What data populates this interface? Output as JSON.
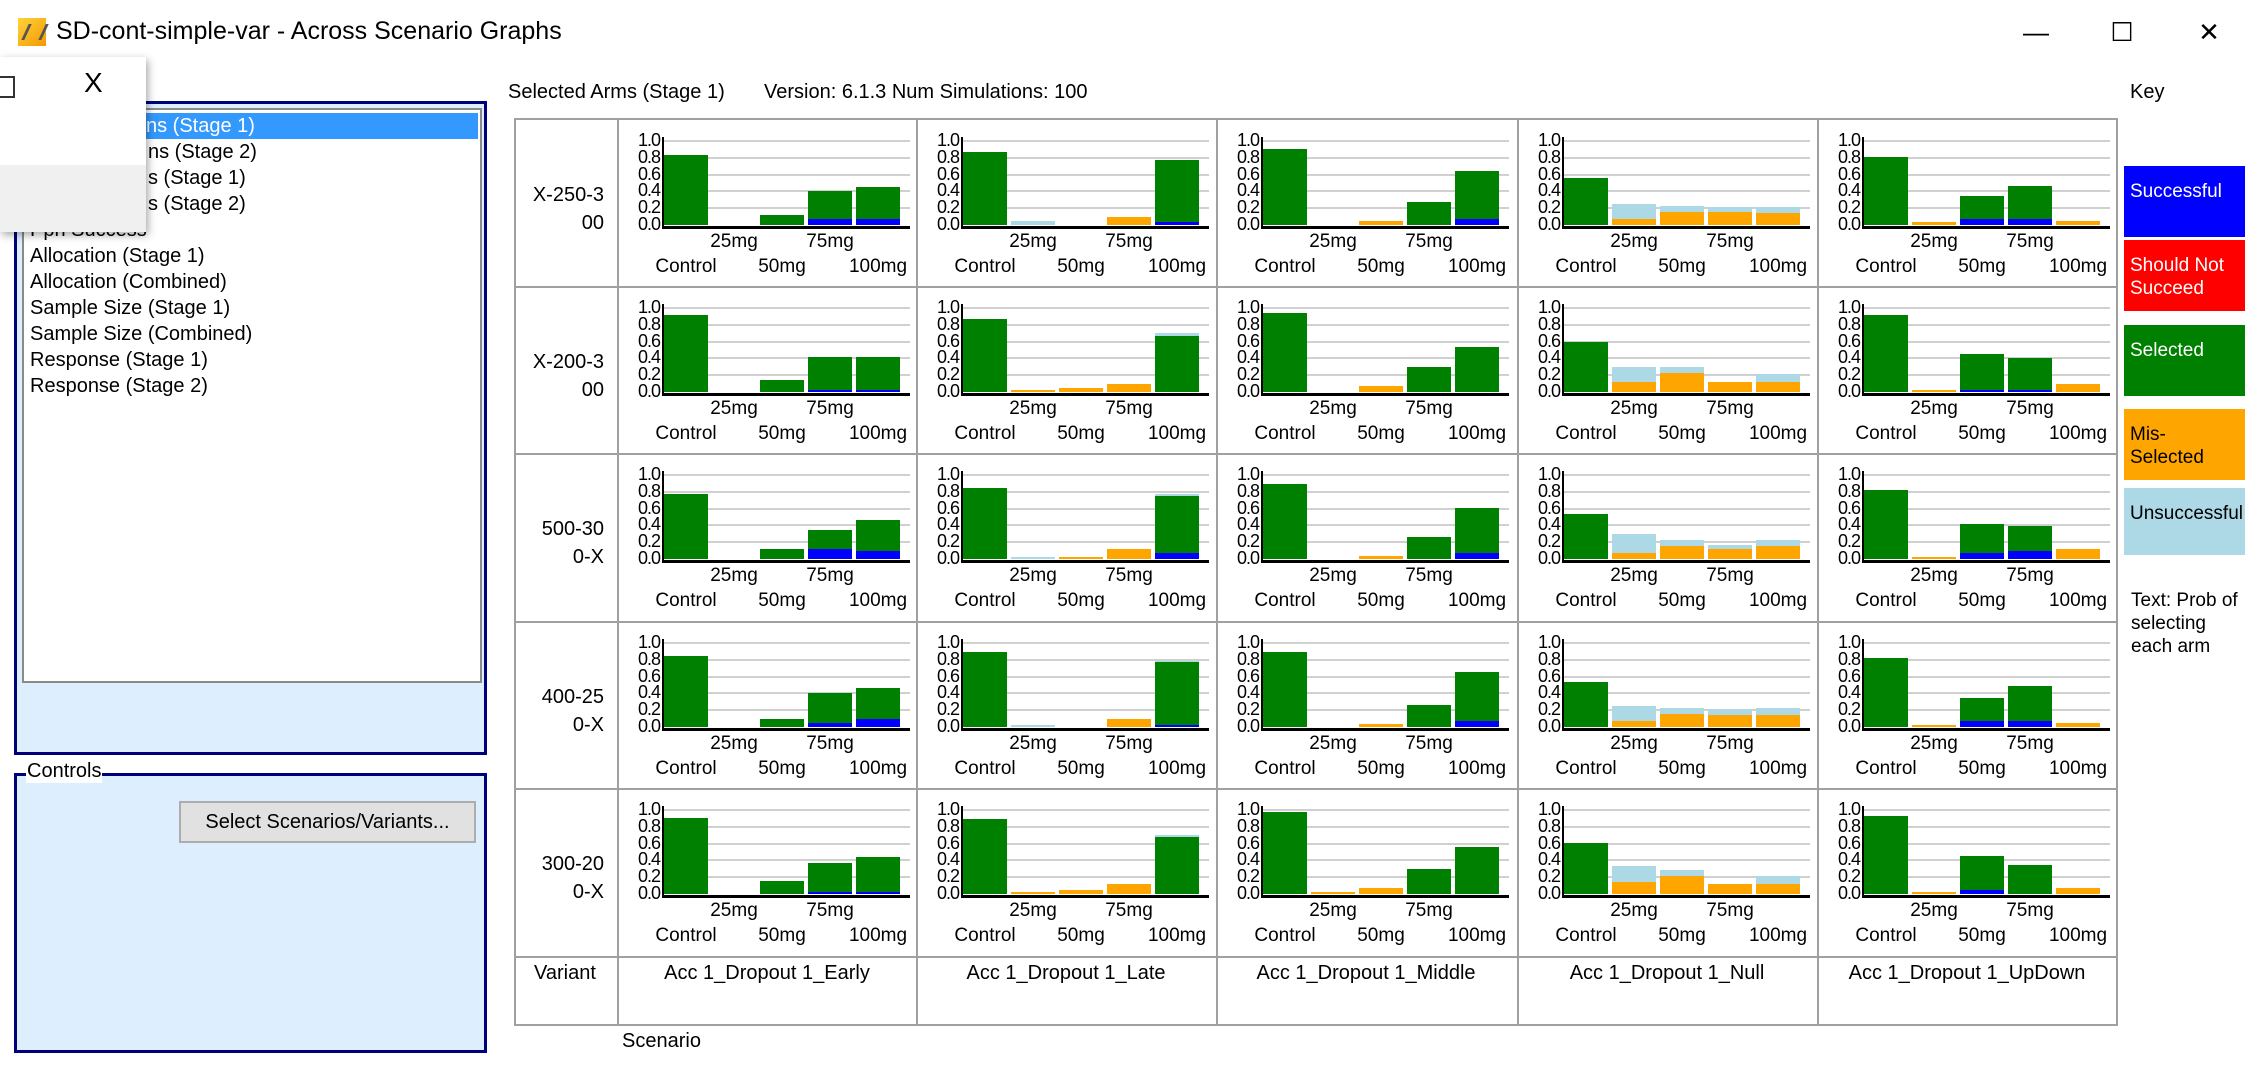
{
  "window": {
    "title": "SD-cont-simple-var - Across Scenario Graphs",
    "minimize": "—",
    "maximize": "☐",
    "close": "✕"
  },
  "popup": {
    "close": "X"
  },
  "list": {
    "items": [
      "ns (Stage 1)",
      "ns (Stage 2)",
      "s (Stage 1)",
      "s (Stage 2)",
      "Ppn Success",
      "Allocation (Stage 1)",
      "Allocation (Combined)",
      "Sample Size (Stage 1)",
      "Sample Size (Combined)",
      "Response (Stage 1)",
      "Response (Stage 2)"
    ],
    "selected_index": 0
  },
  "controls": {
    "title": "Controls",
    "select_button": "Select Scenarios/Variants..."
  },
  "header": {
    "graph_type": "Selected Arms (Stage 1)",
    "version": "Version: 6.1.3  Num Simulations: 100"
  },
  "axis": {
    "variant_label": "Variant",
    "scenario_label": "Scenario"
  },
  "key": {
    "title": "Key",
    "items": [
      {
        "code": "S",
        "label": "Successful",
        "color": "#0000ff",
        "text_color": "#ffffff"
      },
      {
        "code": "N",
        "label": "Should Not Succeed",
        "color": "#ff0000",
        "text_color": "#ffffff"
      },
      {
        "code": "G",
        "label": "Selected",
        "color": "#008000",
        "text_color": "#ffffff"
      },
      {
        "code": "M",
        "label": "Mis-Selected",
        "color": "#ffa500",
        "text_color": "#000000"
      },
      {
        "code": "U",
        "label": "Unsuccessful",
        "color": "#add8e6",
        "text_color": "#000000"
      }
    ],
    "note": "Text: Prob of selecting each arm"
  },
  "chart_data": {
    "type": "bar",
    "stacked": true,
    "title": "Selected Arms (Stage 1)",
    "ylim": [
      0,
      1
    ],
    "y_ticks": [
      "0.0",
      "0.2",
      "0.4",
      "0.6",
      "0.8",
      "1.0"
    ],
    "categories": [
      "Control",
      "25mg",
      "50mg",
      "75mg",
      "100mg"
    ],
    "scenarios": [
      "Acc 1_Dropout 1_Early",
      "Acc 1_Dropout 1_Late",
      "Acc 1_Dropout 1_Middle",
      "Acc 1_Dropout 1_Null",
      "Acc 1_Dropout 1_UpDown"
    ],
    "variants": [
      {
        "label": [
          "X-250-3",
          "00"
        ]
      },
      {
        "label": [
          "X-200-3",
          "00"
        ]
      },
      {
        "label": [
          "500-30",
          "0-X"
        ]
      },
      {
        "label": [
          "400-25",
          "0-X"
        ]
      },
      {
        "label": [
          "300-20",
          "0-X"
        ]
      }
    ],
    "cells": [
      [
        [
          [
            [
              "G",
              0.83
            ]
          ],
          [],
          [
            [
              "G",
              0.12
            ]
          ],
          [
            [
              "S",
              0.07
            ],
            [
              "G",
              0.34
            ]
          ],
          [
            [
              "S",
              0.07
            ],
            [
              "G",
              0.38
            ]
          ]
        ],
        [
          [
            [
              "G",
              0.87
            ]
          ],
          [
            [
              "U",
              0.05
            ]
          ],
          [],
          [
            [
              "M",
              0.1
            ]
          ],
          [
            [
              "S",
              0.03
            ],
            [
              "G",
              0.74
            ]
          ]
        ],
        [
          [
            [
              "G",
              0.9
            ]
          ],
          [],
          [
            [
              "M",
              0.05
            ]
          ],
          [
            [
              "G",
              0.27
            ]
          ],
          [
            [
              "S",
              0.07
            ],
            [
              "G",
              0.57
            ]
          ]
        ],
        [
          [
            [
              "G",
              0.56
            ]
          ],
          [
            [
              "M",
              0.07
            ],
            [
              "U",
              0.18
            ]
          ],
          [
            [
              "M",
              0.16
            ],
            [
              "U",
              0.07
            ]
          ],
          [
            [
              "M",
              0.16
            ],
            [
              "U",
              0.05
            ]
          ],
          [
            [
              "M",
              0.14
            ],
            [
              "U",
              0.07
            ]
          ]
        ],
        [
          [
            [
              "G",
              0.81
            ]
          ],
          [
            [
              "M",
              0.03
            ]
          ],
          [
            [
              "S",
              0.07
            ],
            [
              "G",
              0.27
            ]
          ],
          [
            [
              "S",
              0.07
            ],
            [
              "G",
              0.4
            ]
          ],
          [
            [
              "M",
              0.05
            ]
          ]
        ]
      ],
      [
        [
          [
            [
              "G",
              0.92
            ]
          ],
          [],
          [
            [
              "G",
              0.14
            ]
          ],
          [
            [
              "S",
              0.02
            ],
            [
              "G",
              0.4
            ]
          ],
          [
            [
              "S",
              0.02
            ],
            [
              "G",
              0.4
            ]
          ]
        ],
        [
          [
            [
              "G",
              0.87
            ]
          ],
          [
            [
              "M",
              0.02
            ]
          ],
          [
            [
              "M",
              0.05
            ]
          ],
          [
            [
              "M",
              0.1
            ]
          ],
          [
            [
              "G",
              0.67
            ],
            [
              "U",
              0.03
            ]
          ]
        ],
        [
          [
            [
              "G",
              0.94
            ]
          ],
          [],
          [
            [
              "M",
              0.07
            ]
          ],
          [
            [
              "G",
              0.3
            ]
          ],
          [
            [
              "G",
              0.54
            ]
          ]
        ],
        [
          [
            [
              "G",
              0.6
            ]
          ],
          [
            [
              "M",
              0.12
            ],
            [
              "U",
              0.18
            ]
          ],
          [
            [
              "M",
              0.23
            ],
            [
              "U",
              0.07
            ]
          ],
          [
            [
              "M",
              0.12
            ]
          ],
          [
            [
              "M",
              0.12
            ],
            [
              "U",
              0.09
            ]
          ]
        ],
        [
          [
            [
              "G",
              0.92
            ]
          ],
          [
            [
              "M",
              0.02
            ]
          ],
          [
            [
              "S",
              0.02
            ],
            [
              "G",
              0.43
            ]
          ],
          [
            [
              "S",
              0.02
            ],
            [
              "G",
              0.38
            ]
          ],
          [
            [
              "M",
              0.09
            ]
          ]
        ]
      ],
      [
        [
          [
            [
              "G",
              0.77
            ]
          ],
          [],
          [
            [
              "G",
              0.12
            ]
          ],
          [
            [
              "S",
              0.12
            ],
            [
              "G",
              0.23
            ]
          ],
          [
            [
              "S",
              0.09
            ],
            [
              "G",
              0.38
            ]
          ]
        ],
        [
          [
            [
              "G",
              0.84
            ]
          ],
          [
            [
              "U",
              0.02
            ]
          ],
          [
            [
              "M",
              0.02
            ]
          ],
          [
            [
              "M",
              0.12
            ]
          ],
          [
            [
              "S",
              0.07
            ],
            [
              "G",
              0.68
            ],
            [
              "U",
              0.02
            ]
          ]
        ],
        [
          [
            [
              "G",
              0.89
            ]
          ],
          [],
          [
            [
              "M",
              0.04
            ]
          ],
          [
            [
              "G",
              0.26
            ]
          ],
          [
            [
              "S",
              0.07
            ],
            [
              "G",
              0.54
            ]
          ]
        ],
        [
          [
            [
              "G",
              0.54
            ]
          ],
          [
            [
              "M",
              0.07
            ],
            [
              "U",
              0.23
            ]
          ],
          [
            [
              "M",
              0.16
            ],
            [
              "U",
              0.07
            ]
          ],
          [
            [
              "M",
              0.12
            ],
            [
              "U",
              0.05
            ]
          ],
          [
            [
              "M",
              0.16
            ],
            [
              "U",
              0.07
            ]
          ]
        ],
        [
          [
            [
              "G",
              0.82
            ]
          ],
          [
            [
              "M",
              0.02
            ]
          ],
          [
            [
              "S",
              0.07
            ],
            [
              "G",
              0.35
            ]
          ],
          [
            [
              "S",
              0.09
            ],
            [
              "G",
              0.3
            ]
          ],
          [
            [
              "M",
              0.12
            ]
          ]
        ]
      ],
      [
        [
          [
            [
              "G",
              0.84
            ]
          ],
          [],
          [
            [
              "G",
              0.09
            ]
          ],
          [
            [
              "S",
              0.05
            ],
            [
              "G",
              0.35
            ]
          ],
          [
            [
              "S",
              0.09
            ],
            [
              "G",
              0.37
            ]
          ]
        ],
        [
          [
            [
              "G",
              0.89
            ]
          ],
          [
            [
              "U",
              0.02
            ]
          ],
          [],
          [
            [
              "M",
              0.09
            ]
          ],
          [
            [
              "S",
              0.02
            ],
            [
              "G",
              0.75
            ],
            [
              "U",
              0.02
            ]
          ]
        ],
        [
          [
            [
              "G",
              0.89
            ]
          ],
          [],
          [
            [
              "M",
              0.04
            ]
          ],
          [
            [
              "G",
              0.26
            ]
          ],
          [
            [
              "S",
              0.07
            ],
            [
              "G",
              0.58
            ]
          ]
        ],
        [
          [
            [
              "G",
              0.54
            ]
          ],
          [
            [
              "M",
              0.07
            ],
            [
              "U",
              0.18
            ]
          ],
          [
            [
              "M",
              0.16
            ],
            [
              "U",
              0.07
            ]
          ],
          [
            [
              "M",
              0.14
            ],
            [
              "U",
              0.07
            ]
          ],
          [
            [
              "M",
              0.14
            ],
            [
              "U",
              0.09
            ]
          ]
        ],
        [
          [
            [
              "G",
              0.82
            ]
          ],
          [
            [
              "M",
              0.02
            ]
          ],
          [
            [
              "S",
              0.07
            ],
            [
              "G",
              0.28
            ]
          ],
          [
            [
              "S",
              0.07
            ],
            [
              "G",
              0.42
            ]
          ],
          [
            [
              "M",
              0.05
            ]
          ]
        ]
      ],
      [
        [
          [
            [
              "G",
              0.91
            ]
          ],
          [],
          [
            [
              "G",
              0.16
            ]
          ],
          [
            [
              "S",
              0.02
            ],
            [
              "G",
              0.35
            ]
          ],
          [
            [
              "S",
              0.02
            ],
            [
              "G",
              0.42
            ]
          ]
        ],
        [
          [
            [
              "G",
              0.89
            ]
          ],
          [
            [
              "M",
              0.02
            ]
          ],
          [
            [
              "M",
              0.05
            ]
          ],
          [
            [
              "M",
              0.12
            ]
          ],
          [
            [
              "G",
              0.68
            ],
            [
              "U",
              0.02
            ]
          ]
        ],
        [
          [
            [
              "G",
              0.98
            ]
          ],
          [
            [
              "M",
              0.02
            ]
          ],
          [
            [
              "M",
              0.07
            ]
          ],
          [
            [
              "G",
              0.3
            ]
          ],
          [
            [
              "G",
              0.56
            ]
          ]
        ],
        [
          [
            [
              "G",
              0.61
            ]
          ],
          [
            [
              "M",
              0.14
            ],
            [
              "U",
              0.19
            ]
          ],
          [
            [
              "M",
              0.21
            ],
            [
              "U",
              0.07
            ]
          ],
          [
            [
              "M",
              0.12
            ]
          ],
          [
            [
              "M",
              0.12
            ],
            [
              "U",
              0.09
            ]
          ]
        ],
        [
          [
            [
              "G",
              0.93
            ]
          ],
          [
            [
              "M",
              0.02
            ]
          ],
          [
            [
              "S",
              0.05
            ],
            [
              "G",
              0.4
            ]
          ],
          [
            [
              "G",
              0.35
            ]
          ],
          [
            [
              "M",
              0.07
            ]
          ]
        ]
      ]
    ]
  }
}
